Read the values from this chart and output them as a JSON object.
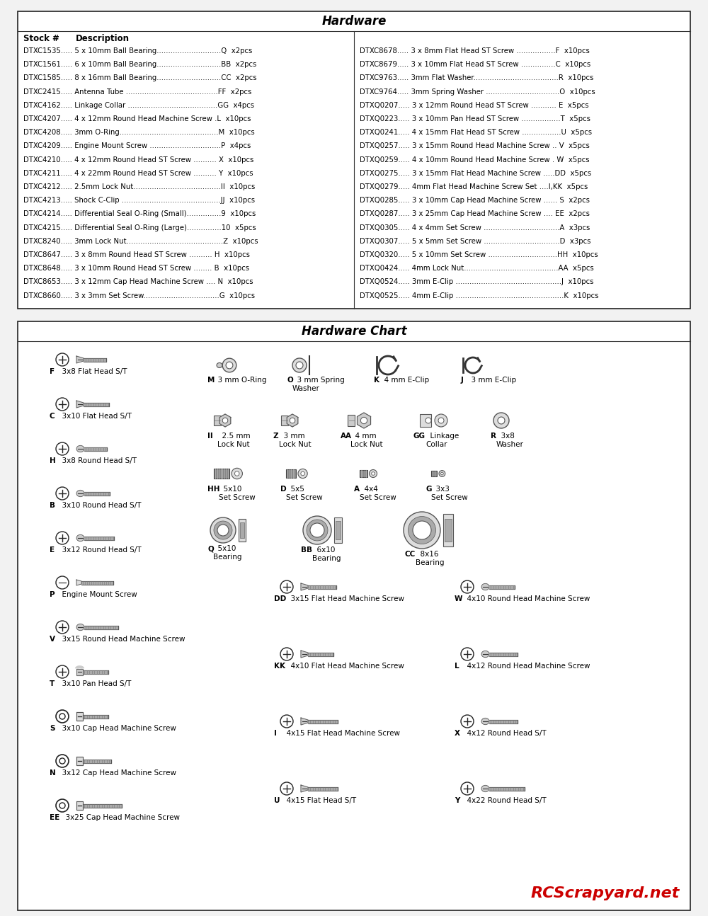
{
  "title": "Hardware",
  "chart_title": "Hardware Chart",
  "watermark": "RCScrapyard.net",
  "left_stock_lines": [
    "DTXC1535..... 5 x 10mm Ball Bearing............................Q  x2pcs",
    "DTXC1561..... 6 x 10mm Ball Bearing............................BB  x2pcs",
    "DTXC1585..... 8 x 16mm Ball Bearing............................CC  x2pcs",
    "DTXC2415..... Antenna Tube ........................................FF  x2pcs",
    "DTXC4162..... Linkage Collar .......................................GG  x4pcs",
    "DTXC4207..... 4 x 12mm Round Head Machine Screw .L  x10pcs",
    "DTXC4208..... 3mm O-Ring...........................................M  x10pcs",
    "DTXC4209..... Engine Mount Screw ...............................P  x4pcs",
    "DTXC4210..... 4 x 12mm Round Head ST Screw .......... X  x10pcs",
    "DTXC4211..... 4 x 22mm Round Head ST Screw .......... Y  x10pcs",
    "DTXC4212..... 2.5mm Lock Nut......................................II  x10pcs",
    "DTXC4213..... Shock C-Clip ...........................................JJ  x10pcs",
    "DTXC4214..... Differential Seal O-Ring (Small)...............9  x10pcs",
    "DTXC4215..... Differential Seal O-Ring (Large)...............10  x5pcs",
    "DTXC8240..... 3mm Lock Nut..........................................Z  x10pcs",
    "DTXC8647..... 3 x 8mm Round Head ST Screw .......... H  x10pcs",
    "DTXC8648..... 3 x 10mm Round Head ST Screw ........ B  x10pcs",
    "DTXC8653..... 3 x 12mm Cap Head Machine Screw .... N  x10pcs",
    "DTXC8660..... 3 x 3mm Set Screw.................................G  x10pcs"
  ],
  "right_stock_lines": [
    "DTXC8678..... 3 x 8mm Flat Head ST Screw .................F  x10pcs",
    "DTXC8679..... 3 x 10mm Flat Head ST Screw ...............C  x10pcs",
    "DTXC9763..... 3mm Flat Washer.....................................R  x10pcs",
    "DTXC9764..... 3mm Spring Washer ................................O  x10pcs",
    "DTXQ0207..... 3 x 12mm Round Head ST Screw ........... E  x5pcs",
    "DTXQ0223..... 3 x 10mm Pan Head ST Screw .................T  x5pcs",
    "DTXQ0241..... 4 x 15mm Flat Head ST Screw .................U  x5pcs",
    "DTXQ0257..... 3 x 15mm Round Head Machine Screw .. V  x5pcs",
    "DTXQ0259..... 4 x 10mm Round Head Machine Screw . W  x5pcs",
    "DTXQ0275..... 3 x 15mm Flat Head Machine Screw .....DD  x5pcs",
    "DTXQ0279..... 4mm Flat Head Machine Screw Set ....I,KK  x5pcs",
    "DTXQ0285..... 3 x 10mm Cap Head Machine Screw ...... S  x2pcs",
    "DTXQ0287..... 3 x 25mm Cap Head Machine Screw .... EE  x2pcs",
    "DTXQ0305..... 4 x 4mm Set Screw .................................A  x3pcs",
    "DTXQ0307..... 5 x 5mm Set Screw .................................D  x3pcs",
    "DTXQ0320..... 5 x 10mm Set Screw ..............................HH  x10pcs",
    "DTXQ0424..... 4mm Lock Nut.........................................AA  x5pcs",
    "DTXQ0524..... 3mm E-Clip ..............................................J  x10pcs",
    "DTXQ0525..... 4mm E-Clip ...............................................K  x10pcs"
  ],
  "bg_color": "#f2f2f2",
  "box_bg": "#ffffff",
  "box_border": "#222222"
}
